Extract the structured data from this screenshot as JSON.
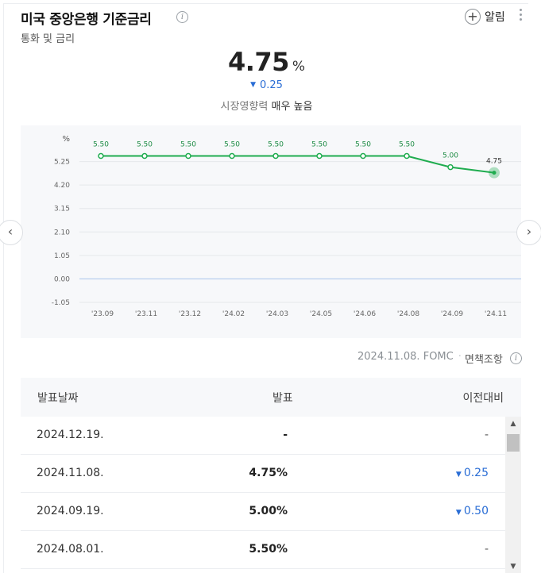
{
  "header": {
    "title": "미국 중앙은행 기준금리",
    "subtitle": "통화 및 금리",
    "info_icon": "info-icon",
    "alarm_label": "알림",
    "alarm_icon": "plus-circle-icon",
    "more_icon": "more-vertical-icon"
  },
  "summary": {
    "value": "4.75",
    "unit": "%",
    "change": "0.25",
    "change_direction": "down",
    "impact_label": "시장영향력",
    "impact_value": "매우 높음"
  },
  "chart_data": {
    "type": "line",
    "ylabel": "%",
    "y_ticks": [
      "5.25",
      "4.20",
      "3.15",
      "2.10",
      "1.05",
      "0.00",
      "-1.05"
    ],
    "y_tick_values": [
      5.25,
      4.2,
      3.15,
      2.1,
      1.05,
      0.0,
      -1.05
    ],
    "ylim": [
      -1.05,
      6.3
    ],
    "categories": [
      "'23.09",
      "'23.11",
      "'23.12",
      "'24.02",
      "'24.03",
      "'24.05",
      "'24.06",
      "'24.08",
      "'24.09",
      "'24.11"
    ],
    "values": [
      5.5,
      5.5,
      5.5,
      5.5,
      5.5,
      5.5,
      5.5,
      5.5,
      5.0,
      4.75
    ],
    "data_labels": [
      "5.50",
      "5.50",
      "5.50",
      "5.50",
      "5.50",
      "5.50",
      "5.50",
      "5.50",
      "5.00",
      "4.75"
    ],
    "line_color": "#1fac4f",
    "highlight_last": true,
    "grid": true
  },
  "nav": {
    "prev_icon": "chevron-left-icon",
    "next_icon": "chevron-right-icon"
  },
  "footer": {
    "date": "2024.11.08.",
    "source": "FOMC",
    "disclaimer": "면책조항"
  },
  "table": {
    "columns": [
      "발표날짜",
      "발표",
      "이전대비"
    ],
    "rows": [
      {
        "date": "2024.12.19.",
        "value": "-",
        "change": "-",
        "direction": ""
      },
      {
        "date": "2024.11.08.",
        "value": "4.75%",
        "change": "0.25",
        "direction": "down"
      },
      {
        "date": "2024.09.19.",
        "value": "5.00%",
        "change": "0.50",
        "direction": "down"
      },
      {
        "date": "2024.08.01.",
        "value": "5.50%",
        "change": "-",
        "direction": ""
      }
    ]
  },
  "colors": {
    "accent_green": "#1fac4f",
    "down_blue": "#2a6dd5"
  }
}
